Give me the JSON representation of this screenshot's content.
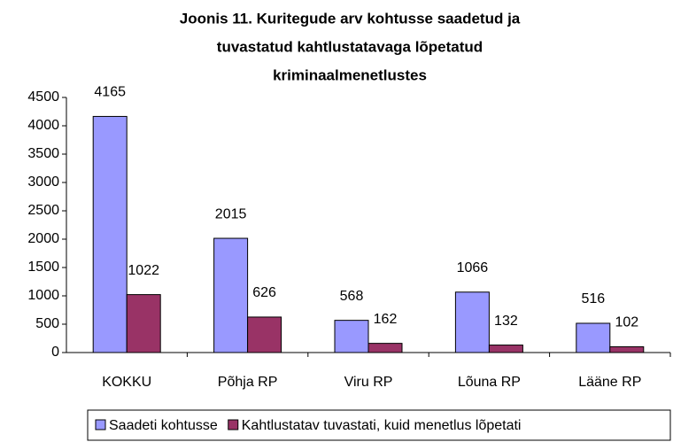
{
  "chart_data": {
    "type": "bar",
    "title": [
      "Joonis 11. Kuritegude arv kohtusse saadetud ja",
      "tuvastatud kahtlustatavaga lõpetatud",
      "kriminaalmenetlustes"
    ],
    "categories": [
      "KOKKU",
      "Põhja RP",
      "Viru RP",
      "Lõuna RP",
      "Lääne RP"
    ],
    "series": [
      {
        "name": "Saadeti kohtusse",
        "color": "#9999ff",
        "values": [
          4165,
          2015,
          568,
          1066,
          516
        ]
      },
      {
        "name": "Kahtlustatav tuvastati, kuid menetlus lõpetati",
        "color": "#993366",
        "values": [
          1022,
          626,
          162,
          132,
          102
        ]
      }
    ],
    "ylim": [
      0,
      4500
    ],
    "yticks": [
      0,
      500,
      1000,
      1500,
      2000,
      2500,
      3000,
      3500,
      4000,
      4500
    ],
    "legend": "bottom"
  }
}
